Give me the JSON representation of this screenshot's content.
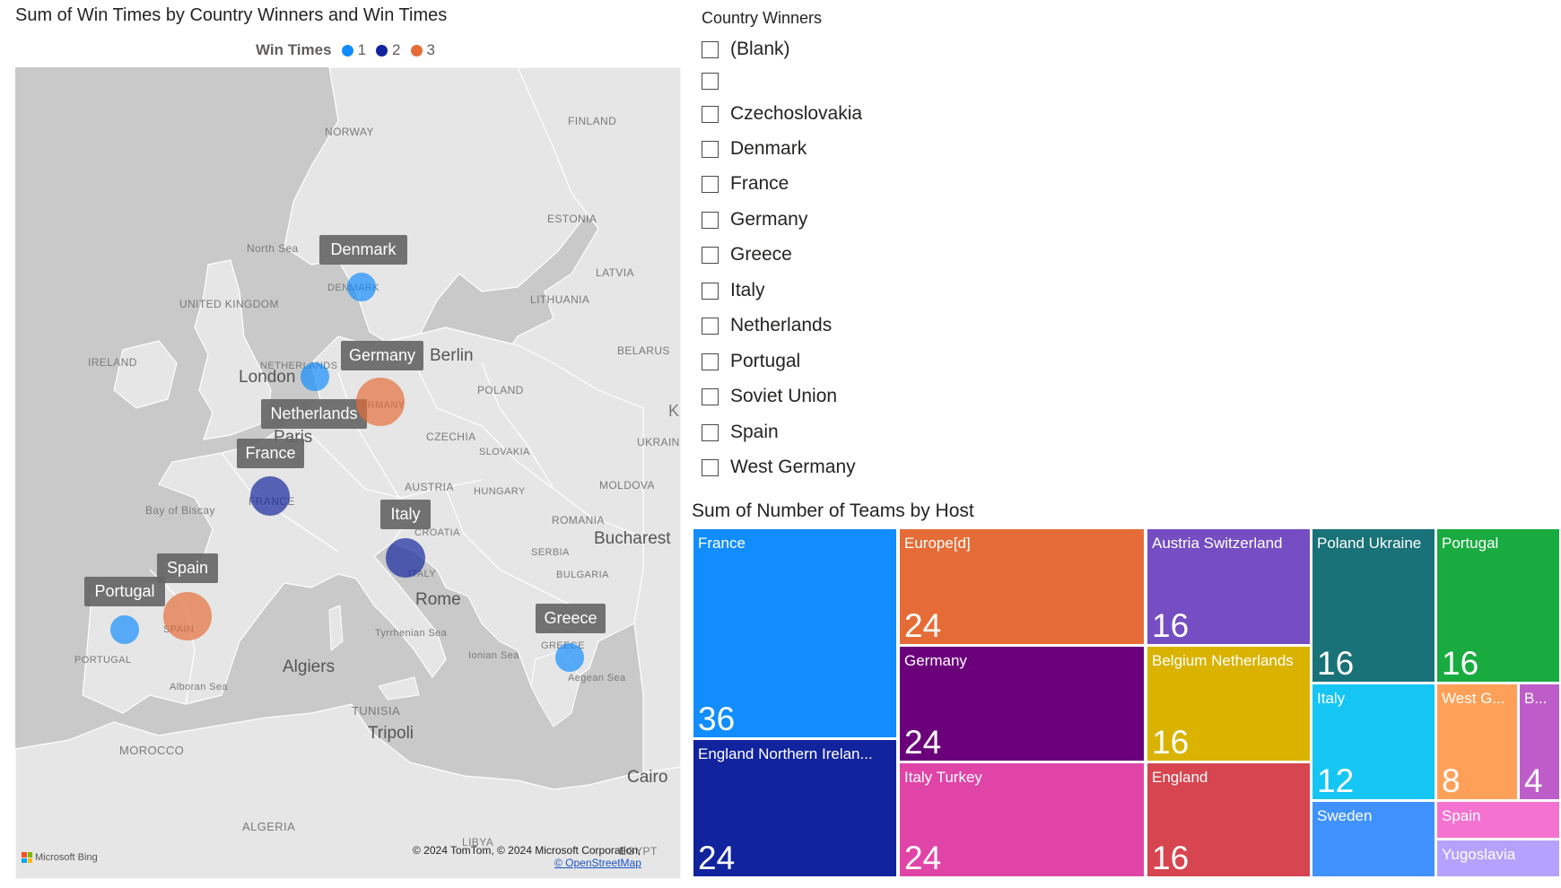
{
  "map_visual": {
    "title": "Sum of Win Times by Country Winners and Win Times",
    "legend": {
      "title": "Win Times",
      "items": [
        {
          "label": "1",
          "color": "#118DFF"
        },
        {
          "label": "2",
          "color": "#12239E"
        },
        {
          "label": "3",
          "color": "#E66C37"
        }
      ]
    },
    "geo_labels": [
      "NORWAY",
      "FINLAND",
      "ESTONIA",
      "LATVIA",
      "LITHUANIA",
      "BELARUS",
      "North Sea",
      "UNITED KINGDOM",
      "IRELAND",
      "NETHERLANDS",
      "POLAND",
      "CZECHIA",
      "SLOVAKIA",
      "UKRAIN",
      "MOLDOVA",
      "AUSTRIA",
      "HUNGARY",
      "ROMANIA",
      "CROATIA",
      "SERBIA",
      "BULGARIA",
      "Bay of Biscay",
      "Tyrrhenian Sea",
      "Ionian Sea",
      "Aegean Sea",
      "Alboran Sea",
      "PORTUGAL",
      "MOROCCO",
      "ALGERIA",
      "TUNISIA",
      "LIBYA",
      "EGYPT",
      "DENMARK",
      "GERMANY",
      "FRANCE",
      "SPAIN",
      "ITALY",
      "GREECE",
      "K"
    ],
    "cities": [
      "London",
      "Paris",
      "Berlin",
      "Rome",
      "Bucharest",
      "Algiers",
      "Tripoli",
      "Cairo"
    ],
    "bubbles": [
      {
        "country": "Denmark",
        "win_times": 1
      },
      {
        "country": "Netherlands",
        "win_times": 1
      },
      {
        "country": "Germany",
        "win_times": 3
      },
      {
        "country": "France",
        "win_times": 2
      },
      {
        "country": "Italy",
        "win_times": 2
      },
      {
        "country": "Spain",
        "win_times": 3
      },
      {
        "country": "Portugal",
        "win_times": 1
      },
      {
        "country": "Greece",
        "win_times": 1
      }
    ],
    "credit": "© 2024 TomTom, © 2024 Microsoft Corporation,",
    "credit_link": "© OpenStreetMap",
    "bing": "Microsoft Bing"
  },
  "slicer": {
    "title": "Country Winners",
    "items": [
      "(Blank)",
      "",
      "Czechoslovakia",
      "Denmark",
      "France",
      "Germany",
      "Greece",
      "Italy",
      "Netherlands",
      "Portugal",
      "Soviet Union",
      "Spain",
      "West Germany"
    ]
  },
  "chart_data": [
    {
      "type": "map",
      "title": "Sum of Win Times by Country Winners and Win Times",
      "legend_title": "Win Times",
      "categories": [
        "Denmark",
        "Netherlands",
        "Germany",
        "France",
        "Italy",
        "Spain",
        "Portugal",
        "Greece"
      ],
      "values": [
        1,
        1,
        3,
        2,
        2,
        3,
        1,
        1
      ]
    },
    {
      "type": "treemap",
      "title": "Sum of Number of Teams by Host",
      "categories": [
        "France",
        "Europe[d]",
        "Austria  Switzerland",
        "Poland Ukraine",
        "Portugal",
        "England  Northern Irelan...",
        "Germany",
        "Italy Turkey",
        "Belgium Netherlands",
        "England",
        "Italy",
        "Sweden",
        "West G...",
        "B...",
        "Spain",
        "Yugoslavia"
      ],
      "values": [
        36,
        24,
        16,
        16,
        16,
        24,
        24,
        24,
        16,
        16,
        12,
        null,
        8,
        4,
        null,
        null
      ],
      "colors": [
        "#118DFF",
        "#E66C37",
        "#744EC2",
        "#197278",
        "#1AAB40",
        "#12239E",
        "#6B007B",
        "#E044A7",
        "#D9B300",
        "#D64550",
        "#15C6F4",
        "#4092FF",
        "#FFA058",
        "#BE5DC9",
        "#F472D0",
        "#B5A1FF"
      ]
    }
  ]
}
